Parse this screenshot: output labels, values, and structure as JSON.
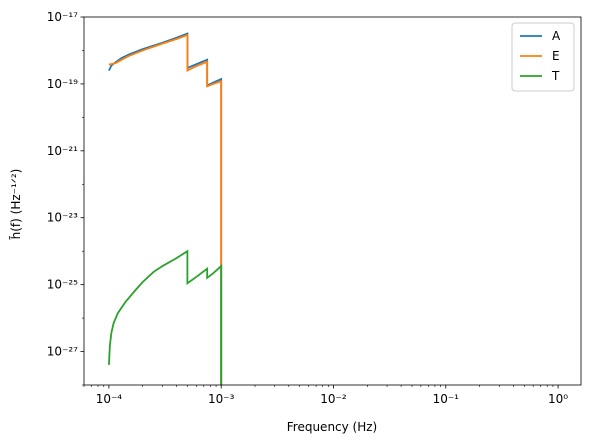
{
  "chart_data": {
    "type": "line",
    "xlabel": "Frequency (Hz)",
    "ylabel": "h̃(f) (Hz⁻¹ᐟ²)",
    "xscale": "log",
    "yscale": "log",
    "xlim": [
      6e-05,
      1.6
    ],
    "ylim": [
      1e-28,
      1e-17
    ],
    "x_ticks": [
      {
        "value": 0.0001,
        "label": "10⁻⁴"
      },
      {
        "value": 0.001,
        "label": "10⁻³"
      },
      {
        "value": 0.01,
        "label": "10⁻²"
      },
      {
        "value": 0.1,
        "label": "10⁻¹"
      },
      {
        "value": 1,
        "label": "10⁰"
      }
    ],
    "y_ticks": [
      {
        "value": 1e-27,
        "label": "10⁻²⁷"
      },
      {
        "value": 1e-25,
        "label": "10⁻²⁵"
      },
      {
        "value": 1e-23,
        "label": "10⁻²³"
      },
      {
        "value": 1e-21,
        "label": "10⁻²¹"
      },
      {
        "value": 1e-19,
        "label": "10⁻¹⁹"
      },
      {
        "value": 1e-17,
        "label": "10⁻¹⁷"
      }
    ],
    "legend_position": "top-right",
    "series": [
      {
        "name": "A",
        "color": "#1f77b4",
        "points": [
          [
            0.0001,
            2.5e-19
          ],
          [
            0.000105,
            3.5e-19
          ],
          [
            0.000115,
            4.5e-19
          ],
          [
            0.00013,
            6e-19
          ],
          [
            0.00015,
            7.5e-19
          ],
          [
            0.0002,
            1.1e-18
          ],
          [
            0.0003,
            1.7e-18
          ],
          [
            0.0004,
            2.4e-18
          ],
          [
            0.0005,
            3.2e-18
          ],
          [
            0.0005,
            3e-19
          ],
          [
            0.0006,
            3.9e-19
          ],
          [
            0.00075,
            5.3e-19
          ],
          [
            0.00075,
            9e-20
          ],
          [
            0.00085,
            1.1e-19
          ],
          [
            0.001,
            1.4e-19
          ],
          [
            0.001,
            1e-28
          ]
        ]
      },
      {
        "name": "E",
        "color": "#ff7f0e",
        "points": [
          [
            0.0001,
            3.8e-19
          ],
          [
            0.000105,
            3.9e-19
          ],
          [
            0.000115,
            4.2e-19
          ],
          [
            0.00013,
            5.3e-19
          ],
          [
            0.00015,
            6.8e-19
          ],
          [
            0.0002,
            1e-18
          ],
          [
            0.0003,
            1.6e-18
          ],
          [
            0.0004,
            2.2e-18
          ],
          [
            0.0005,
            2.9e-18
          ],
          [
            0.0005,
            2.5e-19
          ],
          [
            0.0006,
            3.4e-19
          ],
          [
            0.00075,
            4.6e-19
          ],
          [
            0.00075,
            8.5e-20
          ],
          [
            0.00085,
            1e-19
          ],
          [
            0.001,
            1.2e-19
          ],
          [
            0.001,
            1e-28
          ]
        ]
      },
      {
        "name": "T",
        "color": "#2ca02c",
        "points": [
          [
            0.0001,
            4e-28
          ],
          [
            0.000102,
            1.5e-27
          ],
          [
            0.000105,
            3.5e-27
          ],
          [
            0.00011,
            7e-27
          ],
          [
            0.00012,
            1.4e-26
          ],
          [
            0.00014,
            3e-26
          ],
          [
            0.00017,
            6.5e-26
          ],
          [
            0.0002,
            1.2e-25
          ],
          [
            0.00025,
            2.4e-25
          ],
          [
            0.0003,
            3.6e-25
          ],
          [
            0.0004,
            6.2e-25
          ],
          [
            0.0005,
            1e-24
          ],
          [
            0.0005,
            1.1e-25
          ],
          [
            0.0006,
            1.7e-25
          ],
          [
            0.00075,
            3e-25
          ],
          [
            0.00075,
            1.6e-25
          ],
          [
            0.00085,
            2.2e-25
          ],
          [
            0.001,
            3.6e-25
          ],
          [
            0.001,
            1e-28
          ]
        ]
      }
    ]
  }
}
